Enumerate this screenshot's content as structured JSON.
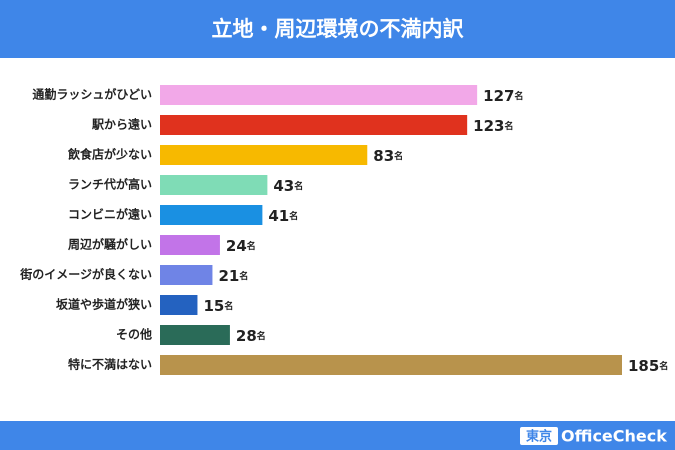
{
  "chart_data": {
    "type": "bar",
    "orientation": "horizontal",
    "title": "立地・周辺環境の不満内訳",
    "categories": [
      "通勤ラッシュがひどい",
      "駅から遠い",
      "飲食店が少ない",
      "ランチ代が高い",
      "コンビニが遠い",
      "周辺が騒がしい",
      "街のイメージが良くない",
      "坂道や歩道が狭い",
      "その他",
      "特に不満はない"
    ],
    "values": [
      127,
      123,
      83,
      43,
      41,
      24,
      21,
      15,
      28,
      185
    ],
    "value_labels": [
      "127名",
      "123名",
      "83名",
      "43名",
      "41名",
      "24名",
      "21名",
      "15名",
      "28名",
      "185名"
    ],
    "colors": [
      "#f2a8e8",
      "#e0321e",
      "#f7b900",
      "#7fdcb6",
      "#1a90e2",
      "#c274e8",
      "#6f84e6",
      "#2462c0",
      "#2a6b58",
      "#b8934c"
    ]
  },
  "brand": {
    "box": "東京",
    "name": "OfficeCheck"
  }
}
